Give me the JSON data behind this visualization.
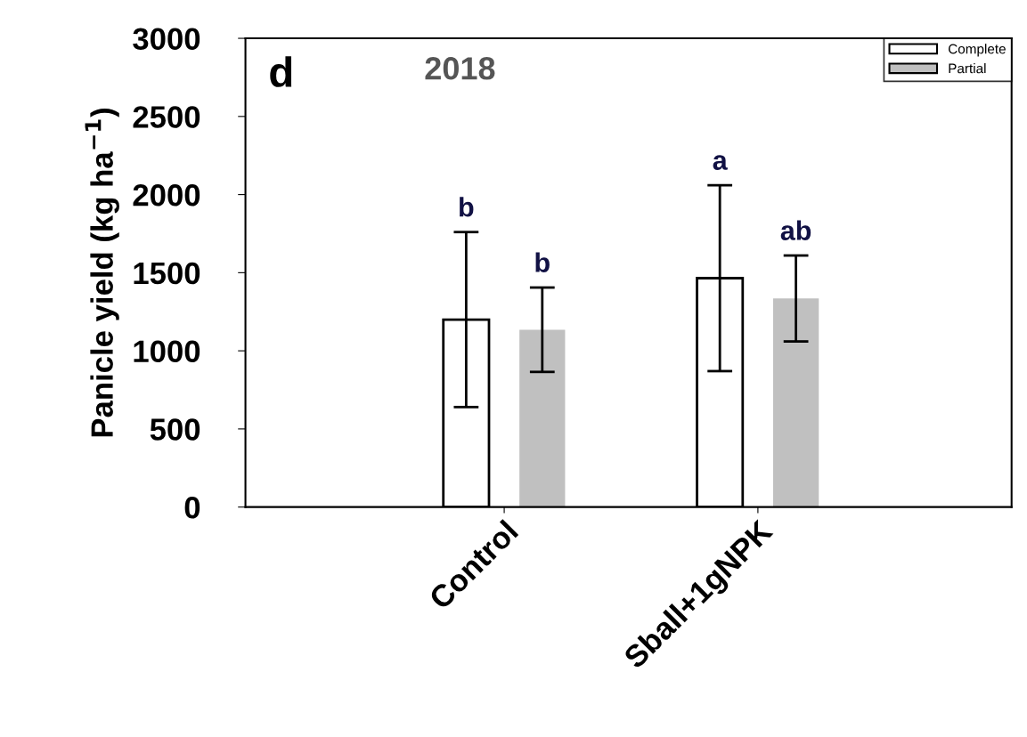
{
  "chart_data": {
    "type": "bar",
    "title": "2018",
    "ylabel": "Panicle yield (kg ha$^{−1}$)",
    "categories": [
      "Control",
      "Sball+1gNPK"
    ],
    "series": [
      {
        "name": "Complete",
        "color": "#ffffff",
        "values": [
          1200,
          1465
        ],
        "errors": [
          560,
          595
        ]
      },
      {
        "name": "Partial",
        "color": "#c0c0c0",
        "values": [
          1135,
          1335
        ],
        "errors": [
          270,
          275
        ]
      }
    ],
    "ylim": [
      0,
      3000
    ],
    "yticks": [
      0,
      500,
      1000,
      1500,
      2000,
      2500,
      3000
    ],
    "legend": "top right",
    "grid": false,
    "annotations": [
      "d",
      "b",
      "b",
      "a",
      "ab"
    ]
  }
}
